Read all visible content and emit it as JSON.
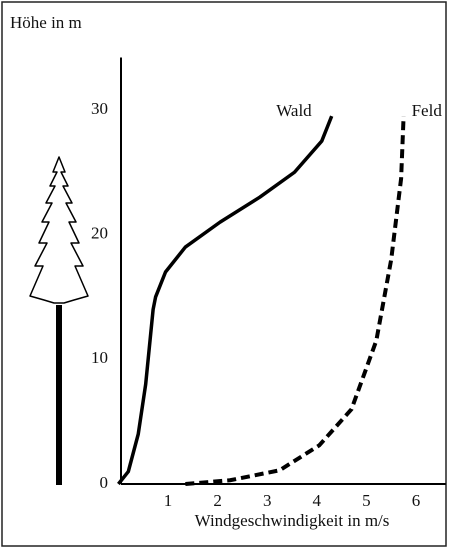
{
  "chart_data": {
    "type": "line",
    "ylabel": "Höhe in m",
    "xlabel": "Windgeschwindigkeit in m/s",
    "series": [
      {
        "name": "Wald",
        "color": "#000000",
        "dash": false,
        "x": [
          0,
          0.2,
          0.4,
          0.55,
          0.65,
          0.7,
          0.75,
          0.95,
          1.35,
          2.05,
          2.85,
          3.55,
          4.1,
          4.3
        ],
        "values": [
          0,
          1,
          4,
          8,
          12,
          14,
          15,
          17,
          19,
          21,
          23,
          25,
          27.5,
          29.5
        ]
      },
      {
        "name": "Feld",
        "color": "#000000",
        "dash": true,
        "x": [
          1.35,
          2.25,
          3.25,
          4.05,
          4.7,
          5.2,
          5.5,
          5.7,
          5.75
        ],
        "values": [
          0,
          0.3,
          1.1,
          3.1,
          6,
          11.5,
          18,
          24.5,
          29.5
        ]
      }
    ],
    "xlim": [
      0,
      6.6
    ],
    "ylim": [
      0,
      34.2
    ],
    "xticks": [
      1,
      2,
      3,
      4,
      5,
      6
    ],
    "yticks": [
      0,
      10,
      20,
      30
    ],
    "grid": false
  }
}
